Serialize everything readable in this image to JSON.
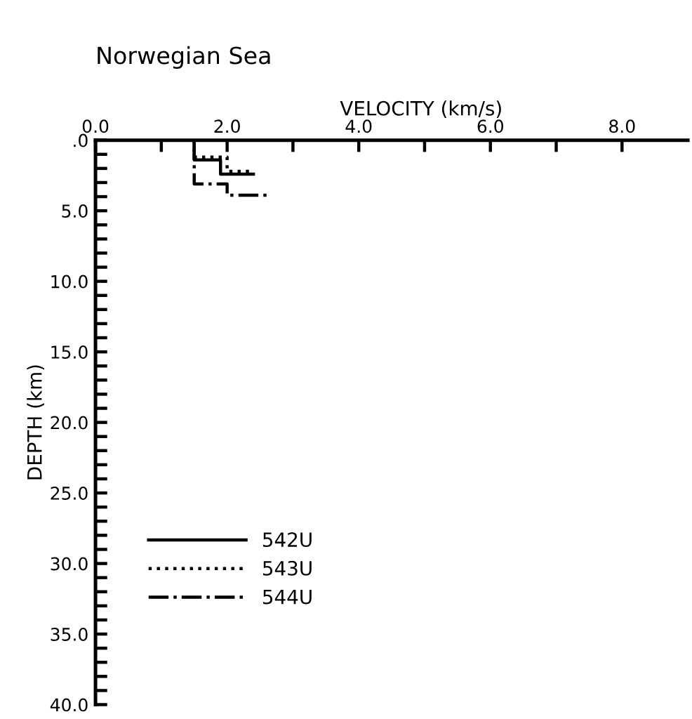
{
  "chart_data": {
    "type": "line",
    "title": "Norwegian Sea",
    "xlabel": "VELOCITY (km/s)",
    "ylabel": "DEPTH (km)",
    "series": [
      {
        "name": "542U",
        "color": "#000000",
        "line_style": "solid",
        "x": [
          1.5,
          1.5,
          1.9,
          1.9,
          2.4
        ],
        "values": [
          0,
          1.4,
          1.4,
          2.4,
          2.4
        ]
      },
      {
        "name": "543U",
        "color": "#000000",
        "line_style": "dotted",
        "x": [
          1.5,
          1.5,
          2.0,
          2.0,
          2.4
        ],
        "values": [
          0,
          1.2,
          1.2,
          2.2,
          2.2
        ]
      },
      {
        "name": "544U",
        "color": "#000000",
        "line_style": "dashdot",
        "x": [
          1.5,
          1.5,
          2.0,
          2.0,
          2.6
        ],
        "values": [
          0,
          3.1,
          3.1,
          3.9,
          3.9
        ]
      }
    ],
    "xlim": [
      0,
      9.0
    ],
    "xticks": [
      {
        "value": 0,
        "label": "0.0"
      },
      {
        "value": 1,
        "label": null
      },
      {
        "value": 2,
        "label": "2.0"
      },
      {
        "value": 3,
        "label": null
      },
      {
        "value": 4,
        "label": "4.0"
      },
      {
        "value": 5,
        "label": null
      },
      {
        "value": 6,
        "label": "6.0"
      },
      {
        "value": 7,
        "label": null
      },
      {
        "value": 8,
        "label": "8.0"
      }
    ],
    "ylim": [
      40,
      0
    ],
    "yticks": [
      {
        "value": 0,
        "label": ".0"
      },
      {
        "value": 1,
        "label": null
      },
      {
        "value": 2,
        "label": null
      },
      {
        "value": 3,
        "label": null
      },
      {
        "value": 4,
        "label": null
      },
      {
        "value": 5,
        "label": "5.0"
      },
      {
        "value": 6,
        "label": null
      },
      {
        "value": 7,
        "label": null
      },
      {
        "value": 8,
        "label": null
      },
      {
        "value": 9,
        "label": null
      },
      {
        "value": 10,
        "label": "10.0"
      },
      {
        "value": 11,
        "label": null
      },
      {
        "value": 12,
        "label": null
      },
      {
        "value": 13,
        "label": null
      },
      {
        "value": 14,
        "label": null
      },
      {
        "value": 15,
        "label": "15.0"
      },
      {
        "value": 16,
        "label": null
      },
      {
        "value": 17,
        "label": null
      },
      {
        "value": 18,
        "label": null
      },
      {
        "value": 19,
        "label": null
      },
      {
        "value": 20,
        "label": "20.0"
      },
      {
        "value": 21,
        "label": null
      },
      {
        "value": 22,
        "label": null
      },
      {
        "value": 23,
        "label": null
      },
      {
        "value": 24,
        "label": null
      },
      {
        "value": 25,
        "label": "25.0"
      },
      {
        "value": 26,
        "label": null
      },
      {
        "value": 27,
        "label": null
      },
      {
        "value": 28,
        "label": null
      },
      {
        "value": 29,
        "label": null
      },
      {
        "value": 30,
        "label": "30.0"
      },
      {
        "value": 31,
        "label": null
      },
      {
        "value": 32,
        "label": null
      },
      {
        "value": 33,
        "label": null
      },
      {
        "value": 34,
        "label": null
      },
      {
        "value": 35,
        "label": "35.0"
      },
      {
        "value": 36,
        "label": null
      },
      {
        "value": 37,
        "label": null
      },
      {
        "value": 38,
        "label": null
      },
      {
        "value": 39,
        "label": null
      },
      {
        "value": 40,
        "label": "40.0"
      }
    ],
    "grid": false,
    "legend": "bottom left",
    "marker": "none"
  }
}
